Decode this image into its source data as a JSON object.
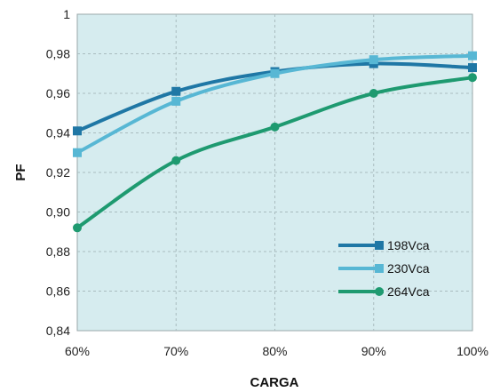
{
  "chart_data": {
    "type": "line",
    "xlabel": "CARGA",
    "ylabel": "PF",
    "categories": [
      "60%",
      "70%",
      "80%",
      "90%",
      "100%"
    ],
    "ylim": [
      0.84,
      1.0
    ],
    "yticks": [
      0.84,
      0.86,
      0.88,
      0.9,
      0.92,
      0.94,
      0.96,
      0.98,
      1.0
    ],
    "ytick_labels": [
      "0,84",
      "0,86",
      "0,88",
      "0,90",
      "0,92",
      "0,94",
      "0,96",
      "0,98",
      "1"
    ],
    "grid": true,
    "legend_position": "bottom-right",
    "series": [
      {
        "name": "198Vca",
        "color": "#1f77a5",
        "marker": "square",
        "values": [
          0.941,
          0.961,
          0.971,
          0.975,
          0.973
        ]
      },
      {
        "name": "230Vca",
        "color": "#57b7d4",
        "marker": "square",
        "values": [
          0.93,
          0.956,
          0.97,
          0.977,
          0.979
        ]
      },
      {
        "name": "264Vca",
        "color": "#1e9a70",
        "marker": "circle",
        "values": [
          0.892,
          0.926,
          0.943,
          0.96,
          0.968
        ]
      }
    ],
    "background": "#d6ecef"
  }
}
